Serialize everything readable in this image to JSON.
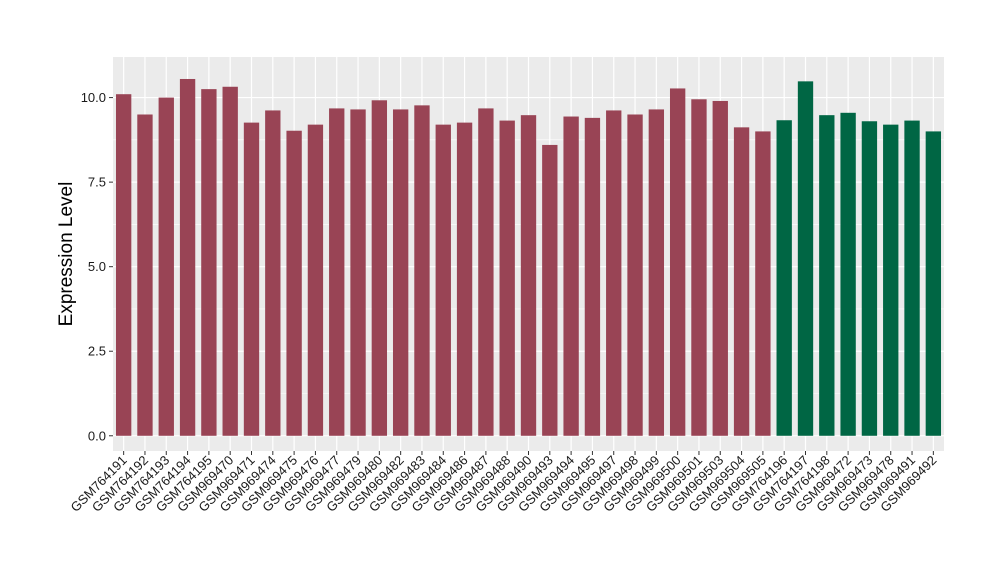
{
  "chart_data": {
    "type": "bar",
    "title": "",
    "xlabel": "",
    "ylabel": "Expression Level",
    "ylim": [
      -0.45,
      11.2
    ],
    "yticks": [
      0.0,
      2.5,
      5.0,
      7.5,
      10.0
    ],
    "ytick_labels": [
      "0.0",
      "2.5",
      "5.0",
      "7.5",
      "10.0"
    ],
    "grid": true,
    "background": "#ebebeb",
    "grid_color": "#ffffff",
    "group_colors": {
      "group1": "#994455",
      "group2": "#006644"
    },
    "categories": [
      "GSM764191",
      "GSM764192",
      "GSM764193",
      "GSM764194",
      "GSM764195",
      "GSM969470",
      "GSM969471",
      "GSM969474",
      "GSM969475",
      "GSM969476",
      "GSM969477",
      "GSM969479",
      "GSM969480",
      "GSM969482",
      "GSM969483",
      "GSM969484",
      "GSM969486",
      "GSM969487",
      "GSM969488",
      "GSM969490",
      "GSM969493",
      "GSM969494",
      "GSM969495",
      "GSM969497",
      "GSM969498",
      "GSM969499",
      "GSM969500",
      "GSM969501",
      "GSM969503",
      "GSM969504",
      "GSM969505",
      "GSM764196",
      "GSM764197",
      "GSM764198",
      "GSM969472",
      "GSM969473",
      "GSM969478",
      "GSM969491",
      "GSM969492"
    ],
    "values": [
      10.1,
      9.5,
      10.0,
      10.55,
      10.25,
      10.32,
      9.26,
      9.62,
      9.02,
      9.2,
      9.68,
      9.65,
      9.92,
      9.65,
      9.77,
      9.2,
      9.26,
      9.68,
      9.32,
      9.48,
      8.6,
      9.44,
      9.4,
      9.62,
      9.5,
      9.65,
      10.27,
      9.95,
      9.9,
      9.12,
      9.0,
      9.33,
      10.48,
      9.48,
      9.55,
      9.3,
      9.2,
      9.32,
      9.0
    ],
    "groups": [
      "group1",
      "group1",
      "group1",
      "group1",
      "group1",
      "group1",
      "group1",
      "group1",
      "group1",
      "group1",
      "group1",
      "group1",
      "group1",
      "group1",
      "group1",
      "group1",
      "group1",
      "group1",
      "group1",
      "group1",
      "group1",
      "group1",
      "group1",
      "group1",
      "group1",
      "group1",
      "group1",
      "group1",
      "group1",
      "group1",
      "group1",
      "group2",
      "group2",
      "group2",
      "group2",
      "group2",
      "group2",
      "group2",
      "group2"
    ]
  }
}
